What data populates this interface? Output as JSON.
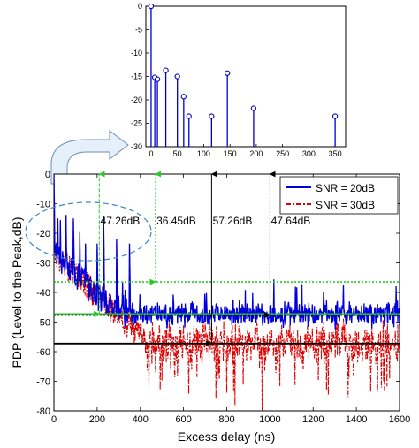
{
  "chart_data": [
    {
      "type": "stem",
      "title": "",
      "xlabel": "",
      "ylabel": "",
      "xlim": [
        -10,
        370
      ],
      "ylim": [
        -30,
        0
      ],
      "xticks": [
        0,
        50,
        100,
        150,
        200,
        250,
        300,
        350
      ],
      "yticks": [
        0,
        -5,
        -10,
        -15,
        -20,
        -25,
        -30
      ],
      "grid": false,
      "color": "#0000cc",
      "points": [
        {
          "x": 0,
          "y": 0
        },
        {
          "x": 7,
          "y": -15.2
        },
        {
          "x": 12,
          "y": -15.6
        },
        {
          "x": 28,
          "y": -13.7
        },
        {
          "x": 50,
          "y": -15.0
        },
        {
          "x": 62,
          "y": -19.3
        },
        {
          "x": 72,
          "y": -23.5
        },
        {
          "x": 115,
          "y": -23.5
        },
        {
          "x": 145,
          "y": -14.3
        },
        {
          "x": 195,
          "y": -21.8
        },
        {
          "x": 350,
          "y": -23.5
        }
      ]
    },
    {
      "type": "line",
      "title": "",
      "xlabel": "Excess delay (ns)",
      "ylabel": "PDP (Level to the Peak,dB)",
      "xlim": [
        0,
        1600
      ],
      "ylim": [
        -80,
        0
      ],
      "xticks": [
        0,
        200,
        400,
        600,
        800,
        1000,
        1200,
        1400,
        1600
      ],
      "yticks": [
        0,
        -10,
        -20,
        -30,
        -40,
        -50,
        -60,
        -70,
        -80
      ],
      "grid": false,
      "legend_position": "top-right",
      "series": [
        {
          "name": "SNR = 20dB",
          "color": "#0000dd",
          "style": "solid",
          "noise_floor": -47.3,
          "noise_spread": 3
        },
        {
          "name": "SNR = 30dB",
          "color": "#dd0000",
          "style": "dash-dot",
          "noise_floor": -57.3,
          "noise_spread": 5
        }
      ],
      "peaks": [
        {
          "x": 0,
          "y": 0
        },
        {
          "x": 18,
          "y": -15
        },
        {
          "x": 30,
          "y": -15.6
        },
        {
          "x": 55,
          "y": -13.8
        },
        {
          "x": 90,
          "y": -15
        },
        {
          "x": 120,
          "y": -19.3
        },
        {
          "x": 145,
          "y": -23.5
        },
        {
          "x": 200,
          "y": -23.5
        },
        {
          "x": 230,
          "y": -14.3
        },
        {
          "x": 290,
          "y": -21.8
        },
        {
          "x": 350,
          "y": -23.5
        }
      ],
      "reference_lines": [
        {
          "y": -36.45,
          "color": "#22cc22",
          "style": "dotted"
        },
        {
          "y": -47.26,
          "color": "#22cc22",
          "style": "solid"
        },
        {
          "y": -57.26,
          "color": "#000000",
          "style": "solid"
        },
        {
          "y": -47.64,
          "color": "#000000",
          "style": "dotted"
        }
      ],
      "annotations": [
        {
          "text": "47.26dB",
          "arrow_x": 210,
          "from": -47.26,
          "to": 0,
          "color": "#22cc22",
          "style": "dashed",
          "label_x": 215,
          "label_y": -17
        },
        {
          "text": "36.45dB",
          "arrow_x": 470,
          "from": -36.45,
          "to": 0,
          "color": "#22cc22",
          "style": "dotted",
          "label_x": 475,
          "label_y": -17
        },
        {
          "text": "57.26dB",
          "arrow_x": 730,
          "from": -57.26,
          "to": 0,
          "color": "#000000",
          "style": "solid",
          "label_x": 735,
          "label_y": -17
        },
        {
          "text": "47.64dB",
          "arrow_x": 1000,
          "from": -47.64,
          "to": 0,
          "color": "#000000",
          "style": "dotted",
          "label_x": 1005,
          "label_y": -17
        }
      ]
    }
  ]
}
